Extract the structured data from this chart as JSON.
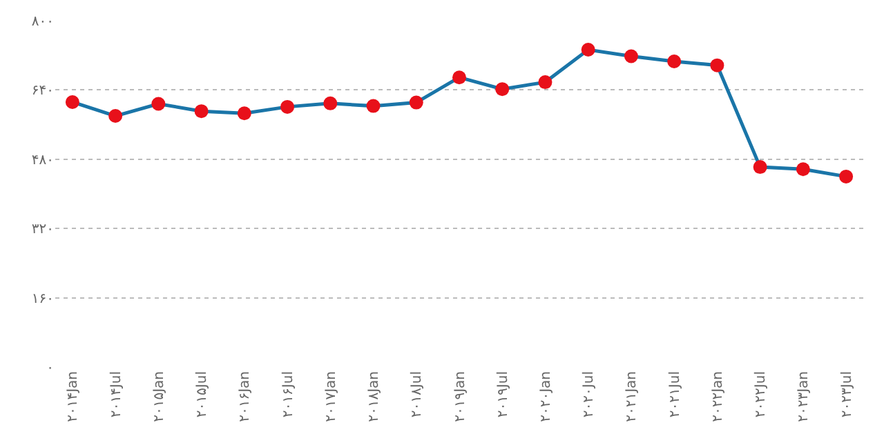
{
  "chart_data": {
    "type": "line",
    "categories": [
      "۲۰۱۴Jan",
      "۲۰۱۴Jul",
      "۲۰۱۵Jan",
      "۲۰۱۵Jul",
      "۲۰۱۶Jan",
      "۲۰۱۶Jul",
      "۲۰۱۷Jan",
      "۲۰۱۸Jan",
      "۲۰۱۸Jul",
      "۲۰۱۹Jan",
      "۲۰۱۹Jul",
      "۲۰۲۰Jan",
      "۲۰۲۰Jul",
      "۲۰۲۱Jan",
      "۲۰۲۱Jul",
      "۲۰۲۲Jan",
      "۲۰۲۲Jul",
      "۲۰۲۳Jan",
      "۲۰۲۳Jul"
    ],
    "series": [
      {
        "color": "#1a75a8",
        "colors": [
          "#e8101a",
          "#e8101a",
          "#e8101a",
          "#e8101a",
          "#e8101a",
          "#e8101a",
          "#e8101a",
          "#e8101a",
          "#e8101a",
          "#e8101a",
          "#e8101a",
          "#e8101a",
          "#e8101a",
          "#e8101a",
          "#e8101a",
          "#e8101a",
          "#e8101a",
          "#e8101a",
          "#e8101a"
        ],
        "values": [
          612,
          580,
          608,
          591,
          586,
          601,
          609,
          603,
          611,
          669,
          642,
          658,
          733,
          718,
          706,
          697,
          462,
          457,
          440
        ]
      }
    ],
    "ylim": [
      0,
      800
    ],
    "yticks": [
      {
        "value": 0,
        "label": "۰"
      },
      {
        "value": 160,
        "label": "۱۶۰"
      },
      {
        "value": 320,
        "label": "۳۲۰"
      },
      {
        "value": 480,
        "label": "۴۸۰"
      },
      {
        "value": 640,
        "label": "۶۴۰"
      },
      {
        "value": 800,
        "label": "۸۰۰"
      }
    ],
    "grid": "y",
    "marker": "circle",
    "line_style": "solid"
  }
}
